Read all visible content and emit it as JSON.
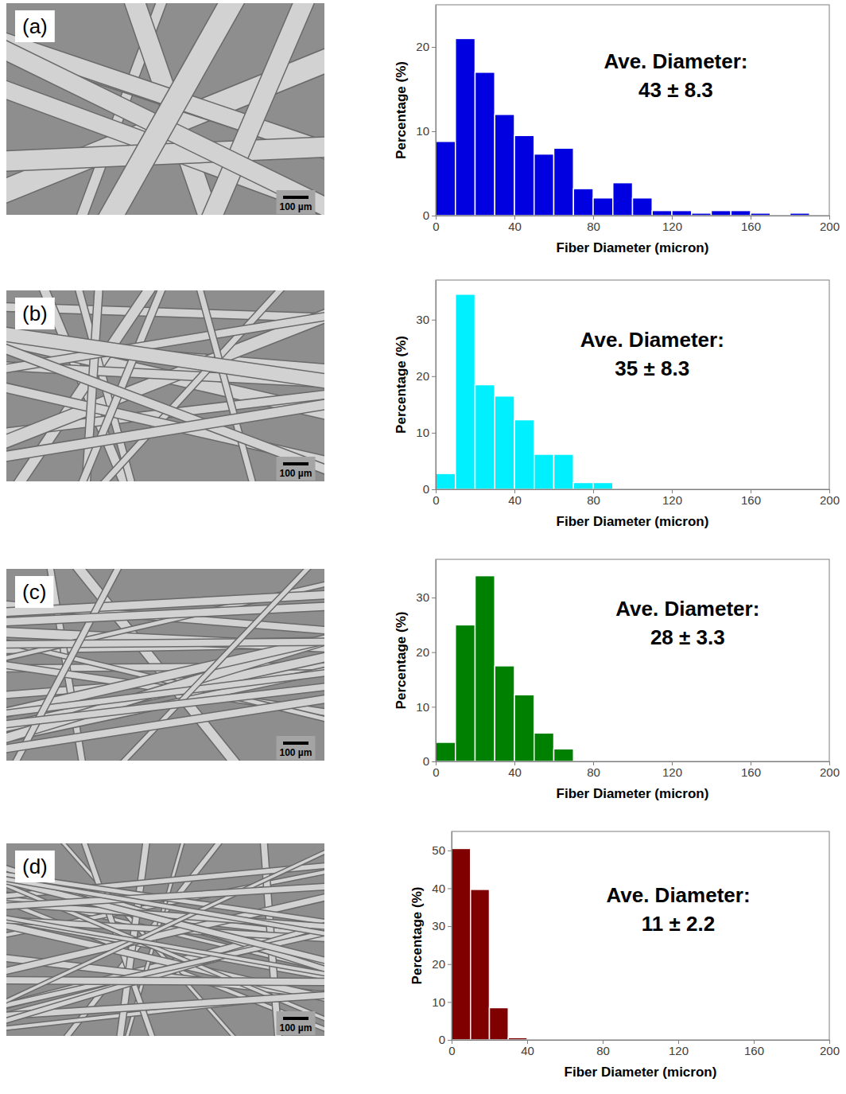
{
  "chart_data": [
    {
      "type": "histogram",
      "panel_label": "(a)",
      "scale_bar_label": "100 µm",
      "annotation": [
        "Ave. Diameter:",
        "43 ± 8.3"
      ],
      "x_label": "Fiber Diameter (micron)",
      "y_label": "Percentage (%)",
      "bins": [
        0,
        10,
        20,
        30,
        40,
        50,
        60,
        70,
        80,
        90,
        100,
        110,
        120,
        130,
        140,
        150,
        160,
        170,
        180,
        190,
        200
      ],
      "values": [
        8.8,
        21,
        17,
        12,
        9.5,
        7.3,
        8,
        3.2,
        2.1,
        3.9,
        2.1,
        0.6,
        0.6,
        0.3,
        0.6,
        0.6,
        0.3,
        0,
        0.3,
        0
      ],
      "color": "#0000e0",
      "xlim": [
        0,
        200
      ],
      "xticks": [
        0,
        40,
        80,
        120,
        160,
        200
      ],
      "ylim": [
        0,
        25
      ],
      "yticks": [
        0,
        10,
        20
      ]
    },
    {
      "type": "histogram",
      "panel_label": "(b)",
      "scale_bar_label": "100 µm",
      "annotation": [
        "Ave. Diameter:",
        "35 ± 8.3"
      ],
      "x_label": "Fiber Diameter (micron)",
      "y_label": "Percentage (%)",
      "bins": [
        0,
        10,
        20,
        30,
        40,
        50,
        60,
        70,
        80,
        90
      ],
      "values": [
        2.8,
        34.5,
        18.5,
        16.5,
        12.3,
        6.2,
        6.2,
        1.2,
        1.2
      ],
      "color": "#00f0ff",
      "xlim": [
        0,
        200
      ],
      "xticks": [
        0,
        40,
        80,
        120,
        160,
        200
      ],
      "ylim": [
        0,
        37
      ],
      "yticks": [
        0,
        10,
        20,
        30
      ]
    },
    {
      "type": "histogram",
      "panel_label": "(c)",
      "scale_bar_label": "100 µm",
      "annotation": [
        "Ave. Diameter:",
        "28 ± 3.3"
      ],
      "x_label": "Fiber Diameter (micron)",
      "y_label": "Percentage (%)",
      "bins": [
        0,
        10,
        20,
        30,
        40,
        50,
        60,
        70
      ],
      "values": [
        3.5,
        25,
        34,
        17.5,
        12.2,
        5.2,
        2.3
      ],
      "color": "#008000",
      "xlim": [
        0,
        200
      ],
      "xticks": [
        0,
        40,
        80,
        120,
        160,
        200
      ],
      "ylim": [
        0,
        37
      ],
      "yticks": [
        0,
        10,
        20,
        30
      ]
    },
    {
      "type": "histogram",
      "panel_label": "(d)",
      "scale_bar_label": "100 µm",
      "annotation": [
        "Ave. Diameter:",
        "11 ± 2.2"
      ],
      "x_label": "Fiber Diameter (micron)",
      "y_label": "Percentage (%)",
      "bins": [
        0,
        10,
        20,
        30,
        40
      ],
      "values": [
        50.5,
        39.7,
        8.5,
        0.6
      ],
      "color": "#800000",
      "xlim": [
        0,
        200
      ],
      "xticks": [
        0,
        40,
        80,
        120,
        160,
        200
      ],
      "ylim": [
        0,
        55
      ],
      "yticks": [
        0,
        10,
        20,
        30,
        40,
        50
      ]
    }
  ]
}
